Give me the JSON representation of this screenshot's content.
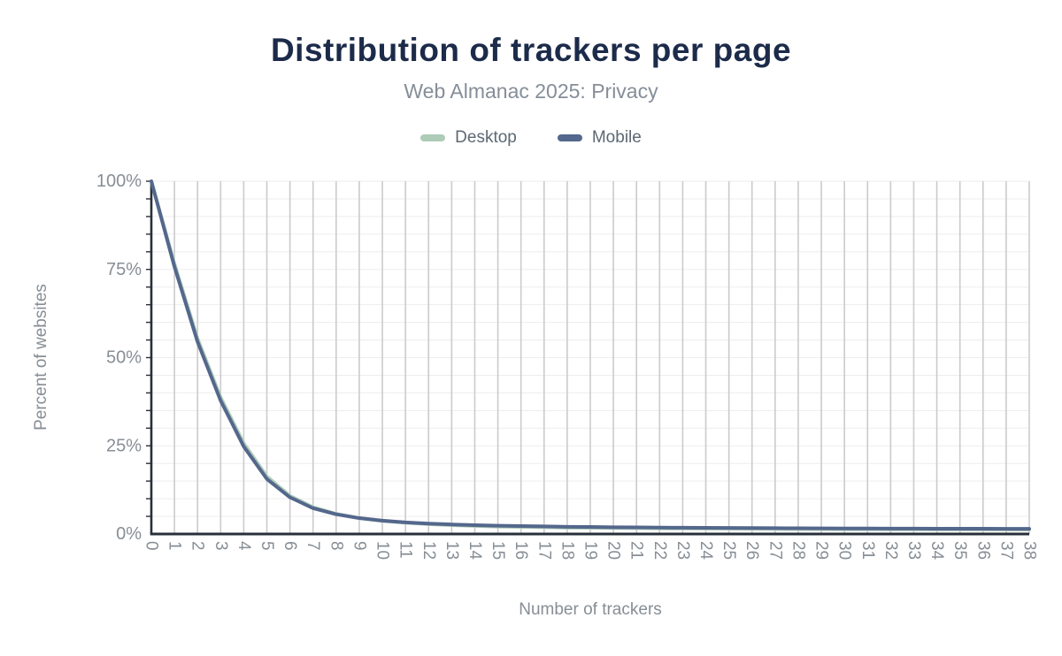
{
  "header": {
    "title": "Distribution of trackers per page",
    "subtitle": "Web Almanac 2025: Privacy"
  },
  "legend": [
    {
      "label": "Desktop",
      "color": "#aecbb8"
    },
    {
      "label": "Mobile",
      "color": "#54678c"
    }
  ],
  "colors": {
    "title": "#1c2b4a",
    "subtitle": "#858e99",
    "axis": "#272f3a",
    "tick_labels": "#878e95",
    "vertical_grid": "#cbcbcd",
    "horizontal_grid": "#ededee",
    "desktop_series": "#aecbb8",
    "mobile_series": "#54678c"
  },
  "chart_data": {
    "type": "line",
    "title": "Distribution of trackers per page",
    "subtitle": "Web Almanac 2025: Privacy",
    "xlabel": "Number of trackers",
    "ylabel": "Percent of websites",
    "x": [
      0,
      1,
      2,
      3,
      4,
      5,
      6,
      7,
      8,
      9,
      10,
      11,
      12,
      13,
      14,
      15,
      16,
      17,
      18,
      19,
      20,
      21,
      22,
      23,
      24,
      25,
      26,
      27,
      28,
      29,
      30,
      31,
      32,
      33,
      34,
      35,
      36,
      37,
      38
    ],
    "series": [
      {
        "name": "Desktop",
        "color": "#aecbb8",
        "values": [
          100,
          76.6,
          55.4,
          38.7,
          25.7,
          16.3,
          10.8,
          7.6,
          5.7,
          4.5,
          3.7,
          3.2,
          2.8,
          2.5,
          2.3,
          2.1,
          2.0,
          1.9,
          1.8,
          1.75,
          1.7,
          1.65,
          1.6,
          1.56,
          1.52,
          1.49,
          1.46,
          1.43,
          1.4,
          1.38,
          1.36,
          1.34,
          1.32,
          1.31,
          1.3,
          1.29,
          1.28,
          1.27,
          1.26
        ]
      },
      {
        "name": "Mobile",
        "color": "#54678c",
        "values": [
          100,
          75.8,
          54.5,
          37.8,
          24.8,
          15.6,
          10.4,
          7.3,
          5.6,
          4.5,
          3.8,
          3.3,
          2.95,
          2.7,
          2.5,
          2.35,
          2.25,
          2.15,
          2.05,
          2.0,
          1.92,
          1.87,
          1.82,
          1.78,
          1.74,
          1.71,
          1.68,
          1.65,
          1.62,
          1.6,
          1.58,
          1.56,
          1.54,
          1.53,
          1.51,
          1.5,
          1.49,
          1.48,
          1.47
        ]
      }
    ],
    "ylim": [
      0,
      100
    ],
    "yticks": [
      0,
      25,
      50,
      75,
      100
    ],
    "ytick_suffix": "%",
    "legend_position": "top",
    "grid": {
      "vertical": true,
      "horizontal_minor_step": 5,
      "y_minor_tick_step": 5
    },
    "x_label_rotation": 90
  }
}
